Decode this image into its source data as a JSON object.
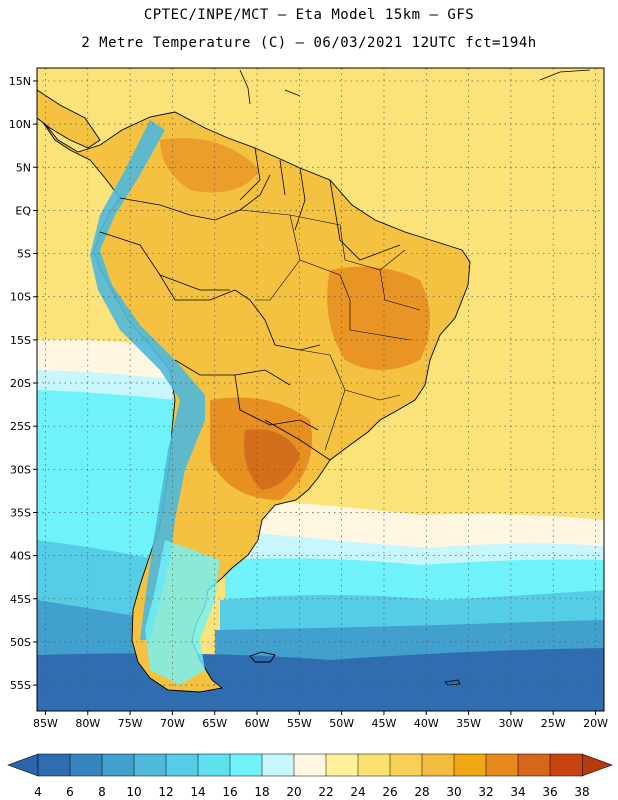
{
  "header": {
    "line1": "CPTEC/INPE/MCT –  Eta Model 15km – GFS",
    "line2": "2 Metre Temperature (C) – 06/03/2021 12UTC fct=194h"
  },
  "axes": {
    "lat_labels": [
      "15N",
      "10N",
      "5N",
      "EQ",
      "5S",
      "10S",
      "15S",
      "20S",
      "25S",
      "30S",
      "35S",
      "40S",
      "45S",
      "50S",
      "55S"
    ],
    "lat_values": [
      15,
      10,
      5,
      0,
      -5,
      -10,
      -15,
      -20,
      -25,
      -30,
      -35,
      -40,
      -45,
      -50,
      -55
    ],
    "lon_labels": [
      "85W",
      "80W",
      "75W",
      "70W",
      "65W",
      "60W",
      "55W",
      "50W",
      "45W",
      "40W",
      "35W",
      "30W",
      "25W",
      "20W"
    ],
    "lon_values": [
      -85,
      -80,
      -75,
      -70,
      -65,
      -60,
      -55,
      -50,
      -45,
      -40,
      -35,
      -30,
      -25,
      -20
    ],
    "lat_range": [
      -58,
      16.5
    ],
    "lon_range": [
      -86,
      -19
    ]
  },
  "colorbar": {
    "labels": [
      "4",
      "6",
      "8",
      "10",
      "12",
      "14",
      "16",
      "18",
      "20",
      "22",
      "24",
      "26",
      "28",
      "30",
      "32",
      "34",
      "36",
      "38"
    ],
    "values": [
      4,
      6,
      8,
      10,
      12,
      14,
      16,
      18,
      20,
      22,
      24,
      26,
      28,
      30,
      32,
      34,
      36,
      38
    ],
    "colors": [
      "#2f6db0",
      "#3684bd",
      "#42a0ce",
      "#4fb8db",
      "#56cde6",
      "#5ee0ef",
      "#70f2fb",
      "#c7f6fc",
      "#fff7e2",
      "#fff09a",
      "#fbe26e",
      "#f7d055",
      "#f0bd3f",
      "#f0a714",
      "#e68a1e",
      "#d8661a",
      "#c74410"
    ],
    "low_color": "#2b66ad",
    "high_color": "#b73a0c"
  },
  "colors": {
    "ocean_warm": "#fbe37a",
    "ocean_pale": "#fff7e2",
    "ocean_cool_light": "#c7f6fc",
    "ocean_cyan": "#70f2fb",
    "ocean_mid": "#56cde6",
    "ocean_blue": "#42a0ce",
    "ocean_deep": "#2f6db0",
    "land_base": "#f4c240",
    "land_hot": "#e5861c",
    "land_hottest": "#cf6a1a",
    "andes_cold": "#4fb8db"
  }
}
